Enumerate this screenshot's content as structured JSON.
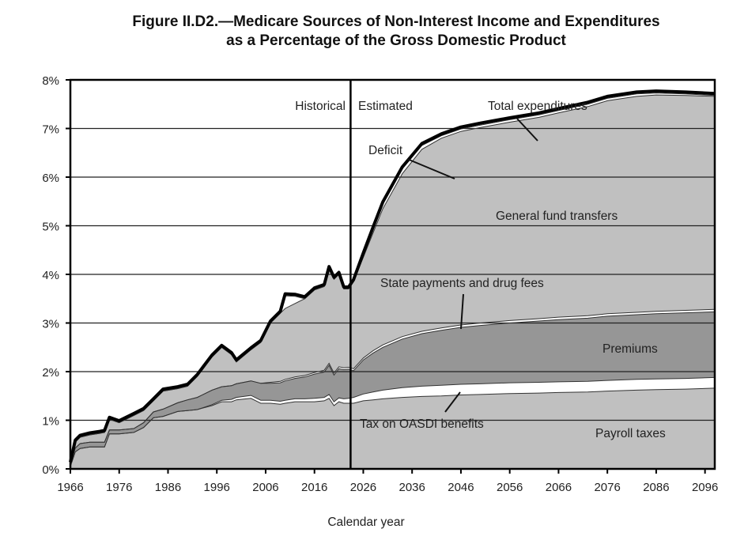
{
  "chart_data": {
    "type": "area",
    "title": "Figure II.D2.—Medicare Sources of Non-Interest Income and Expenditures",
    "subtitle": "as a Percentage of the Gross Domestic Product",
    "xlabel": "Calendar year",
    "ylabel": "",
    "xlim": [
      1966,
      2098
    ],
    "ylim": [
      0,
      8
    ],
    "grid": true,
    "x_ticks": [
      "1966",
      "1976",
      "1986",
      "1996",
      "2006",
      "2016",
      "2026",
      "2036",
      "2046",
      "2056",
      "2066",
      "2076",
      "2086",
      "2096"
    ],
    "y_ticks": [
      "0%",
      "1%",
      "2%",
      "3%",
      "4%",
      "5%",
      "6%",
      "7%",
      "8%"
    ],
    "divider_year": 2023.4,
    "period_labels": {
      "historical": "Historical",
      "estimated": "Estimated"
    },
    "x": [
      1966,
      1967,
      1968,
      1970,
      1972,
      1973,
      1974,
      1976,
      1979,
      1981,
      1983,
      1985,
      1988,
      1990,
      1992,
      1995,
      1997,
      1999,
      2000,
      2003,
      2005,
      2007,
      2009,
      2010,
      2012,
      2014,
      2016,
      2018,
      2019,
      2020,
      2021,
      2022,
      2023,
      2024,
      2026,
      2028,
      2030,
      2034,
      2038,
      2042,
      2046,
      2050,
      2056,
      2062,
      2066,
      2072,
      2076,
      2082,
      2086,
      2092,
      2098
    ],
    "series": [
      {
        "name": "Payroll taxes",
        "color": "#c0c0c0",
        "values": [
          0.05,
          0.35,
          0.42,
          0.45,
          0.45,
          0.45,
          0.72,
          0.72,
          0.75,
          0.85,
          1.05,
          1.08,
          1.18,
          1.2,
          1.22,
          1.3,
          1.38,
          1.38,
          1.42,
          1.45,
          1.35,
          1.35,
          1.33,
          1.35,
          1.38,
          1.38,
          1.38,
          1.4,
          1.45,
          1.3,
          1.38,
          1.35,
          1.35,
          1.35,
          1.4,
          1.42,
          1.44,
          1.47,
          1.49,
          1.5,
          1.52,
          1.53,
          1.55,
          1.56,
          1.57,
          1.58,
          1.6,
          1.62,
          1.63,
          1.64,
          1.66
        ]
      },
      {
        "name": "Tax on OASDI benefits",
        "color": "#ffffff",
        "values": [
          0,
          0,
          0,
          0,
          0,
          0,
          0,
          0,
          0,
          0,
          0,
          0,
          0,
          0,
          0,
          0.02,
          0.03,
          0.05,
          0.05,
          0.06,
          0.06,
          0.06,
          0.06,
          0.06,
          0.06,
          0.06,
          0.07,
          0.07,
          0.08,
          0.08,
          0.08,
          0.09,
          0.1,
          0.12,
          0.14,
          0.16,
          0.18,
          0.2,
          0.21,
          0.22,
          0.22,
          0.22,
          0.22,
          0.22,
          0.22,
          0.22,
          0.22,
          0.22,
          0.22,
          0.22,
          0.22
        ]
      },
      {
        "name": "Premiums",
        "color": "#969696",
        "values": [
          0.05,
          0.08,
          0.1,
          0.1,
          0.1,
          0.1,
          0.08,
          0.08,
          0.08,
          0.1,
          0.12,
          0.15,
          0.18,
          0.22,
          0.25,
          0.3,
          0.28,
          0.28,
          0.28,
          0.3,
          0.35,
          0.35,
          0.38,
          0.4,
          0.42,
          0.45,
          0.5,
          0.52,
          0.6,
          0.55,
          0.6,
          0.6,
          0.6,
          0.55,
          0.7,
          0.8,
          0.88,
          1.0,
          1.08,
          1.13,
          1.17,
          1.2,
          1.23,
          1.26,
          1.28,
          1.3,
          1.32,
          1.33,
          1.34,
          1.35,
          1.35
        ]
      },
      {
        "name": "State payments and drug fees",
        "color": "#ffffff",
        "values": [
          0,
          0,
          0,
          0,
          0,
          0,
          0,
          0,
          0,
          0,
          0,
          0,
          0,
          0,
          0,
          0,
          0,
          0,
          0,
          0,
          0,
          0.02,
          0.03,
          0.03,
          0.03,
          0.03,
          0.03,
          0.04,
          0.04,
          0.04,
          0.04,
          0.04,
          0.04,
          0.04,
          0.04,
          0.05,
          0.05,
          0.05,
          0.05,
          0.05,
          0.05,
          0.05,
          0.05,
          0.05,
          0.05,
          0.05,
          0.05,
          0.05,
          0.05,
          0.05,
          0.05
        ]
      },
      {
        "name": "General fund transfers",
        "color": "#c0c0c0",
        "values": [
          0,
          0.12,
          0.13,
          0.15,
          0.18,
          0.2,
          0.22,
          0.15,
          0.27,
          0.25,
          0.23,
          0.37,
          0.29,
          0.28,
          0.43,
          0.68,
          0.81,
          0.64,
          0.45,
          0.64,
          0.84,
          1.22,
          1.4,
          1.46,
          1.51,
          1.58,
          1.7,
          1.72,
          1.95,
          1.93,
          1.9,
          1.62,
          1.61,
          1.79,
          2.07,
          2.42,
          2.8,
          3.35,
          3.74,
          3.9,
          3.98,
          4.02,
          4.08,
          4.14,
          4.2,
          4.3,
          4.38,
          4.44,
          4.45,
          4.42,
          4.38
        ]
      },
      {
        "name": "Deficit",
        "color": "#ffffff",
        "values": [
          0,
          0,
          0,
          0,
          0,
          0,
          0,
          0,
          0,
          0,
          0,
          0,
          0,
          0,
          0,
          0,
          0,
          0,
          0,
          0,
          0,
          0,
          0,
          0.26,
          0.15,
          0.0,
          0,
          0,
          0,
          0,
          0,
          0,
          0,
          0,
          0.05,
          0.08,
          0.1,
          0.1,
          0.08,
          0.05,
          0.05,
          0.05,
          0.05,
          0.05,
          0.05,
          0.05,
          0.05,
          0.05,
          0.04,
          0.03,
          0.02
        ]
      }
    ],
    "total_expenditures": {
      "name": "Total expenditures",
      "values": [
        0.1,
        0.55,
        0.65,
        0.7,
        0.73,
        0.75,
        0.98,
        0.95,
        1.1,
        1.2,
        1.4,
        1.6,
        1.65,
        1.7,
        1.9,
        2.3,
        2.5,
        2.35,
        2.2,
        2.45,
        2.6,
        3.0,
        3.2,
        3.5,
        3.45,
        3.5,
        3.68,
        3.75,
        4.0,
        3.9,
        3.95,
        3.7,
        3.7,
        3.85,
        4.4,
        4.93,
        5.45,
        6.17,
        6.65,
        6.85,
        6.99,
        7.07,
        7.15,
        7.28,
        7.37,
        7.5,
        7.62,
        7.71,
        7.73,
        7.71,
        7.68
      ]
    },
    "annotations": [
      {
        "text": "Total expenditures"
      },
      {
        "text": "Deficit"
      },
      {
        "text": "General fund transfers"
      },
      {
        "text": "State payments and drug fees"
      },
      {
        "text": "Premiums"
      },
      {
        "text": "Tax on OASDI benefits"
      },
      {
        "text": "Payroll taxes"
      }
    ]
  }
}
